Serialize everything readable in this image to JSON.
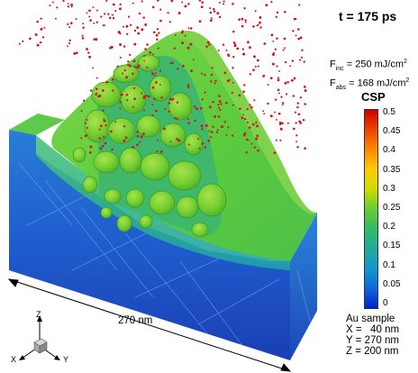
{
  "time_label": "t = 175 ps",
  "fluence": {
    "inc_prefix": "F",
    "inc_sub": "inc",
    "inc_value": " = 250 mJ/cm",
    "inc_sup": "2",
    "abs_prefix": "F",
    "abs_sub": "abs",
    "abs_value": " = 168 mJ/cm",
    "abs_sup": "2"
  },
  "colorbar": {
    "title": "CSP",
    "ticks": [
      "0.5",
      "0.45",
      "0.4",
      "0.35",
      "0.3",
      "0.25",
      "0.2",
      "0.15",
      "0.1",
      "0.05",
      "0"
    ],
    "colors": [
      "#cc0000",
      "#ee4400",
      "#ff8800",
      "#ffcc00",
      "#ccdd00",
      "#66cc33",
      "#33bb66",
      "#22aa99",
      "#1199cc",
      "#1166dd",
      "#0022cc"
    ]
  },
  "dimension_label": "270 nm",
  "axes": {
    "x": "X",
    "y": "Y",
    "z": "Z"
  },
  "sample": {
    "title": "Au sample",
    "x": "X =   40 nm",
    "y": "Y = 270 nm",
    "z": "Z = 200 nm"
  }
}
